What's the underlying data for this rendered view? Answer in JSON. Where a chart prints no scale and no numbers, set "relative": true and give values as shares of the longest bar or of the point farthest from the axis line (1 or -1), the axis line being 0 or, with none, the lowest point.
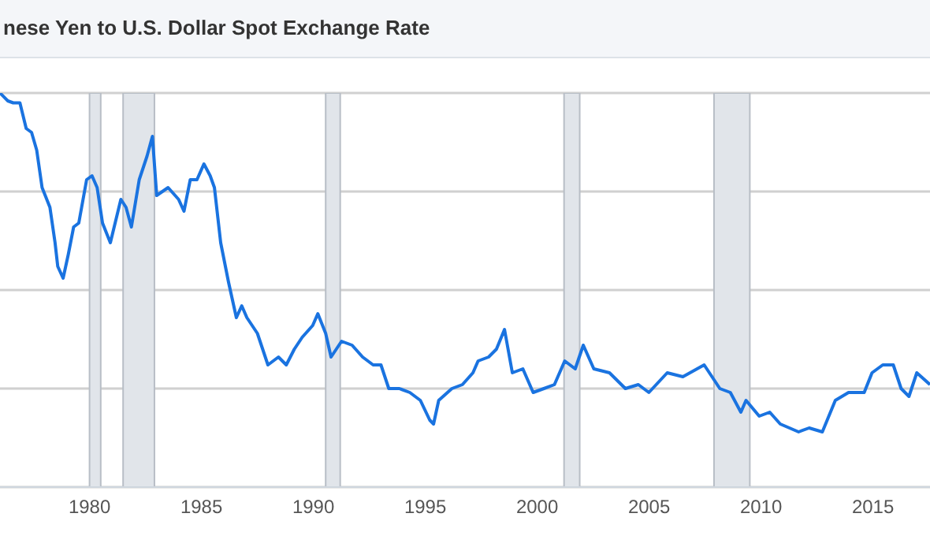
{
  "chart_data": {
    "type": "line",
    "title": "nese Yen to U.S. Dollar Spot Exchange Rate",
    "relative": true,
    "grid": true,
    "legend": false,
    "marker": "none",
    "line_style": "solid",
    "xlim": [
      1976,
      2017.55
    ],
    "xticks": [
      1980,
      1985,
      1990,
      1995,
      2000,
      2005,
      2010,
      2015
    ],
    "bands": [
      {
        "axis": "x",
        "from": 1980.0,
        "to": 1980.5,
        "color": "#e1e5ea"
      },
      {
        "axis": "x",
        "from": 1981.5,
        "to": 1982.9,
        "color": "#e1e5ea"
      },
      {
        "axis": "x",
        "from": 1990.55,
        "to": 1991.2,
        "color": "#e1e5ea"
      },
      {
        "axis": "x",
        "from": 2001.2,
        "to": 2001.9,
        "color": "#e1e5ea"
      },
      {
        "axis": "x",
        "from": 2007.9,
        "to": 2009.5,
        "color": "#e1e5ea"
      }
    ],
    "series": [
      {
        "color": "#1a73e0",
        "x": [
          1976.0,
          1976.35,
          1976.59,
          1976.89,
          1977.17,
          1977.41,
          1977.64,
          1977.88,
          1978.23,
          1978.46,
          1978.58,
          1978.82,
          1979.05,
          1979.29,
          1979.52,
          1979.87,
          1980.11,
          1980.34,
          1980.58,
          1980.93,
          1981.4,
          1981.63,
          1981.87,
          1982.22,
          1982.57,
          1982.81,
          1983.0,
          1983.51,
          1983.98,
          1984.22,
          1984.5,
          1984.8,
          1985.11,
          1985.39,
          1985.58,
          1985.86,
          1986.21,
          1986.56,
          1986.8,
          1987.03,
          1987.5,
          1987.97,
          1988.44,
          1988.79,
          1989.15,
          1989.5,
          1989.97,
          1990.2,
          1990.55,
          1990.79,
          1991.26,
          1991.73,
          1992.2,
          1992.67,
          1993.02,
          1993.37,
          1993.84,
          1994.31,
          1994.78,
          1995.2,
          1995.37,
          1995.6,
          1996.19,
          1996.66,
          1997.13,
          1997.36,
          1997.83,
          1998.18,
          1998.54,
          1998.89,
          1999.36,
          1999.82,
          2000.3,
          2000.77,
          2001.23,
          2001.7,
          2002.06,
          2002.53,
          2003.23,
          2003.94,
          2004.52,
          2004.99,
          2005.81,
          2006.51,
          2007.46,
          2008.16,
          2008.63,
          2009.1,
          2009.33,
          2009.92,
          2010.39,
          2010.86,
          2011.68,
          2012.15,
          2012.74,
          2013.32,
          2013.91,
          2014.61,
          2014.96,
          2015.44,
          2015.91,
          2016.26,
          2016.61,
          2016.96,
          2017.55
        ],
        "values": [
          1,
          0.98,
          0.975,
          0.975,
          0.91,
          0.9,
          0.855,
          0.76,
          0.71,
          0.62,
          0.56,
          0.53,
          0.59,
          0.66,
          0.67,
          0.78,
          0.79,
          0.76,
          0.67,
          0.62,
          0.73,
          0.71,
          0.66,
          0.78,
          0.84,
          0.89,
          0.74,
          0.76,
          0.73,
          0.7,
          0.78,
          0.78,
          0.82,
          0.79,
          0.76,
          0.62,
          0.52,
          0.43,
          0.46,
          0.43,
          0.39,
          0.31,
          0.33,
          0.31,
          0.35,
          0.38,
          0.41,
          0.44,
          0.39,
          0.33,
          0.37,
          0.36,
          0.33,
          0.31,
          0.31,
          0.25,
          0.25,
          0.24,
          0.22,
          0.17,
          0.16,
          0.22,
          0.25,
          0.26,
          0.29,
          0.32,
          0.33,
          0.35,
          0.4,
          0.29,
          0.3,
          0.24,
          0.25,
          0.26,
          0.32,
          0.3,
          0.36,
          0.3,
          0.29,
          0.25,
          0.26,
          0.24,
          0.29,
          0.28,
          0.31,
          0.25,
          0.24,
          0.19,
          0.22,
          0.18,
          0.19,
          0.16,
          0.14,
          0.15,
          0.14,
          0.22,
          0.24,
          0.24,
          0.29,
          0.31,
          0.31,
          0.25,
          0.23,
          0.29,
          0.26
        ]
      }
    ]
  }
}
